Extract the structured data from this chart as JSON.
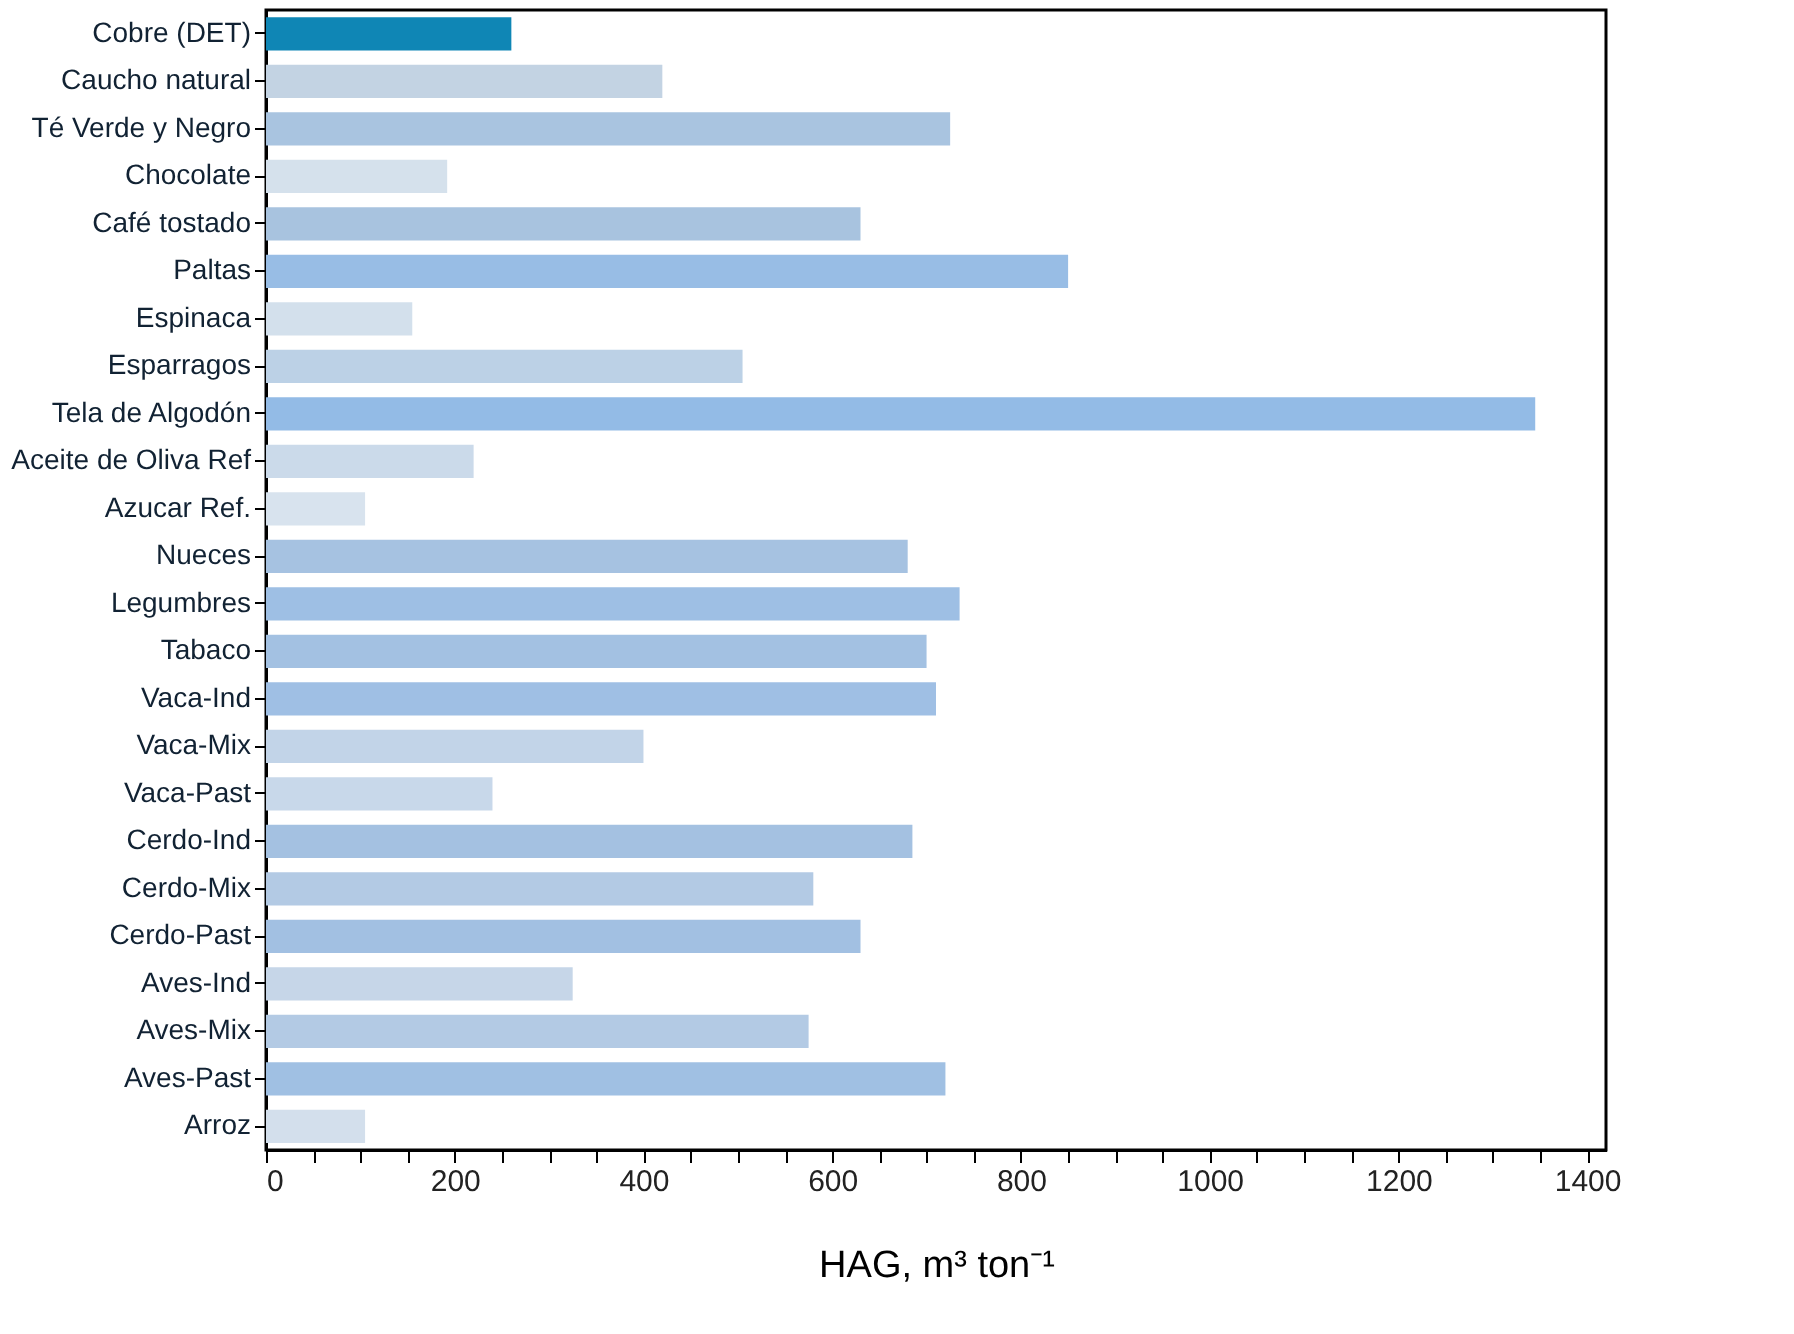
{
  "chart_data": {
    "type": "bar",
    "orientation": "horizontal",
    "xlabel": "HAG, m³ ton⁻¹",
    "categories": [
      "Cobre (DET)",
      "Caucho natural",
      "Té Verde y Negro",
      "Chocolate",
      "Café tostado",
      "Paltas",
      "Espinaca",
      "Esparragos",
      "Tela de Algodón",
      "Aceite de Oliva Ref",
      "Azucar Ref.",
      "Nueces",
      "Legumbres",
      "Tabaco",
      "Vaca-Ind",
      "Vaca-Mix",
      "Vaca-Past",
      "Cerdo-Ind",
      "Cerdo-Mix",
      "Cerdo-Past",
      "Aves-Ind",
      "Aves-Mix",
      "Aves-Past",
      "Arroz"
    ],
    "values": [
      260,
      420,
      725,
      192,
      630,
      850,
      155,
      505,
      1345,
      220,
      105,
      680,
      735,
      700,
      710,
      400,
      240,
      685,
      580,
      630,
      325,
      575,
      720,
      105
    ],
    "colors": [
      "#0f86b5",
      "#c3d3e3",
      "#a9c4e0",
      "#d5e1ec",
      "#a8c3df",
      "#98bde5",
      "#d3e0ec",
      "#bcd1e6",
      "#93bbe6",
      "#cbdaea",
      "#d8e3ee",
      "#a6c2e1",
      "#9ebfe4",
      "#a3c1e2",
      "#9fbfe4",
      "#c2d4e8",
      "#c8d8ea",
      "#a4c1e1",
      "#b3cae4",
      "#a2c0e2",
      "#c6d6e8",
      "#b3cae4",
      "#a0c0e3",
      "#d3dfec"
    ],
    "xlim": [
      0,
      1420
    ],
    "xticks": [
      0,
      {
        "value": 50,
        "label": null
      },
      {
        "value": 100,
        "label": null
      },
      {
        "value": 150,
        "label": null
      },
      200,
      {
        "value": 250,
        "label": null
      },
      {
        "value": 300,
        "label": null
      },
      {
        "value": 350,
        "label": null
      },
      400,
      {
        "value": 450,
        "label": null
      },
      {
        "value": 500,
        "label": null
      },
      {
        "value": 550,
        "label": null
      },
      600,
      {
        "value": 650,
        "label": null
      },
      {
        "value": 700,
        "label": null
      },
      {
        "value": 750,
        "label": null
      },
      800,
      {
        "value": 850,
        "label": null
      },
      {
        "value": 900,
        "label": null
      },
      {
        "value": 950,
        "label": null
      },
      1000,
      {
        "value": 1050,
        "label": null
      },
      {
        "value": 1100,
        "label": null
      },
      {
        "value": 1150,
        "label": null
      },
      1200,
      {
        "value": 1250,
        "label": null
      },
      {
        "value": 1300,
        "label": null
      },
      {
        "value": 1350,
        "label": null
      },
      1400
    ],
    "grid": false
  }
}
